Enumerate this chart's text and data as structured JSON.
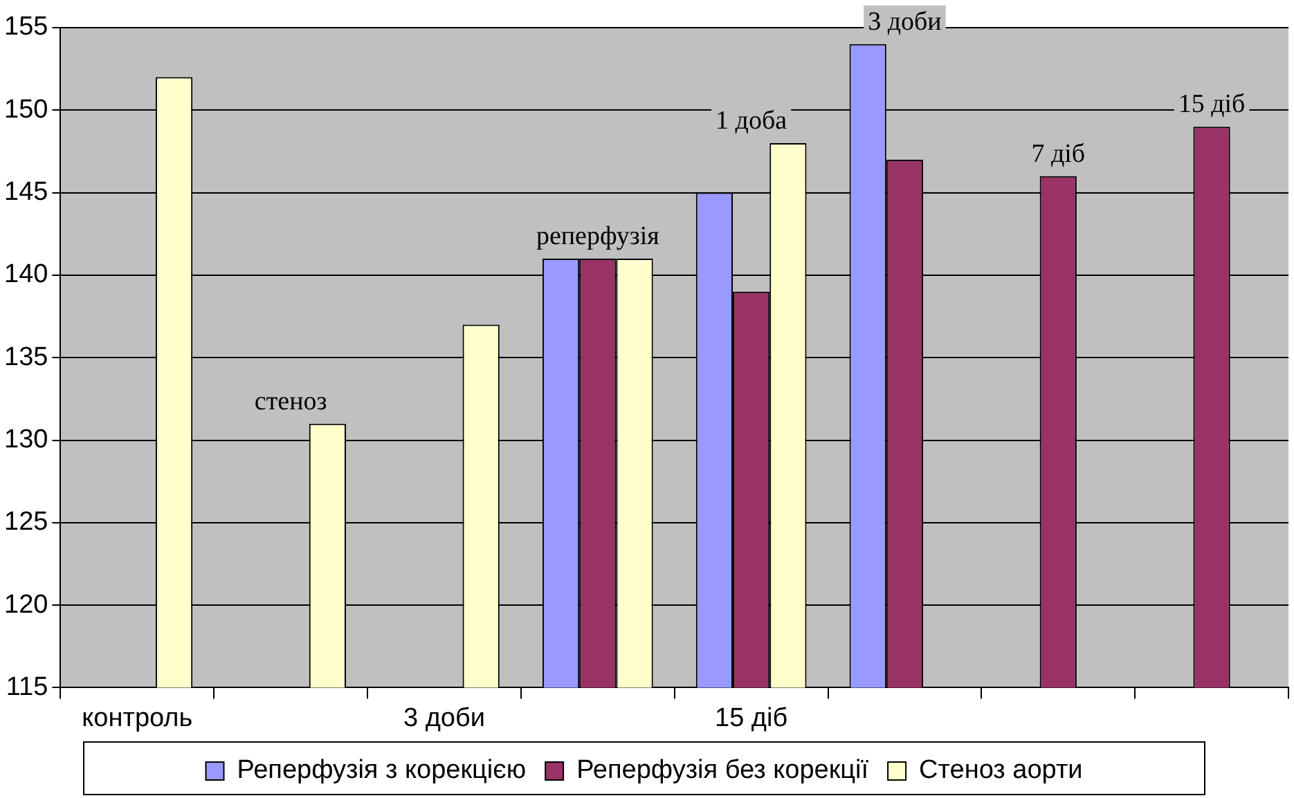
{
  "chart_data": {
    "type": "bar",
    "categories": [
      "контроль",
      null,
      "3 доби",
      null,
      "15 діб",
      null,
      null,
      null
    ],
    "series": [
      {
        "name": "Реперфузія з корекцією",
        "color": "#9999ff",
        "values": [
          null,
          null,
          null,
          141,
          145,
          154,
          null,
          null
        ]
      },
      {
        "name": "Реперфузія без корекції",
        "color": "#993366",
        "values": [
          null,
          null,
          null,
          141,
          139,
          147,
          146,
          149
        ]
      },
      {
        "name": "Стеноз аорти",
        "color": "#ffffcc",
        "values": [
          152,
          131,
          137,
          141,
          148,
          null,
          null,
          null
        ]
      }
    ],
    "ylim": [
      115,
      155
    ],
    "yticks": [
      115,
      120,
      125,
      130,
      135,
      140,
      145,
      150,
      155
    ],
    "annotations": [
      "стеноз",
      "реперфузія",
      "1 доба",
      "3 доби",
      "7 діб",
      "15 діб"
    ],
    "grid": "y",
    "legend": "bottom"
  }
}
